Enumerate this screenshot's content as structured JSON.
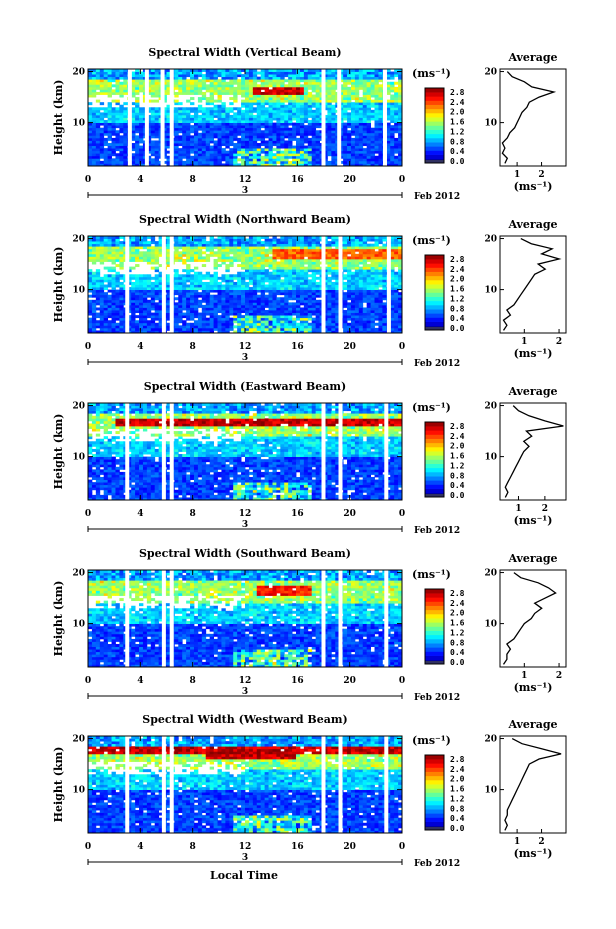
{
  "figure": {
    "xlabel": "Local Time",
    "date_label": "Feb 2012",
    "day_marker": "3",
    "ylabel": "Height (km)",
    "unit_label": "(ms⁻¹)",
    "average_title": "Average",
    "average_xlabel": "(ms⁻¹)"
  },
  "chart_data": [
    {
      "type": "heatmap",
      "title": "Spectral Width (Vertical Beam)",
      "xlabel": "Local Time",
      "ylabel": "Height (km)",
      "xticks": [
        "0",
        "4",
        "8",
        "12",
        "16",
        "20",
        "0"
      ],
      "xlim": [
        0,
        24
      ],
      "yticks": [
        "10",
        "20"
      ],
      "ylim": [
        1.5,
        20.5
      ],
      "colorbar": {
        "label": "(ms⁻¹)",
        "ticks": [
          "2.8",
          "2.4",
          "2.0",
          "1.6",
          "1.2",
          "0.8",
          "0.4",
          "0.0"
        ],
        "range": [
          0,
          2.8
        ]
      },
      "hot_bands": [
        {
          "height_km": 16.3,
          "t_start": 12.7,
          "t_end": 16.5,
          "value": 2.8
        }
      ],
      "data_gaps_hours": [
        3.2,
        4.5,
        5.7,
        6.4,
        18.0,
        19.2,
        22.7
      ],
      "average_profile": {
        "xticks": [
          "1",
          "2"
        ],
        "xlim": [
          0.3,
          3.0
        ],
        "heights": [
          2,
          3,
          4,
          5,
          6,
          7,
          8,
          9,
          10,
          11,
          12,
          13,
          14,
          15,
          16,
          17,
          18,
          19,
          20
        ],
        "values": [
          0.5,
          0.6,
          0.4,
          0.5,
          0.4,
          0.6,
          0.7,
          0.9,
          1.0,
          1.1,
          1.2,
          1.4,
          1.5,
          1.9,
          2.5,
          1.6,
          1.3,
          0.8,
          0.6
        ]
      }
    },
    {
      "type": "heatmap",
      "title": "Spectral Width (Northward Beam)",
      "xlabel": "Local Time",
      "ylabel": "Height (km)",
      "xticks": [
        "0",
        "4",
        "8",
        "12",
        "16",
        "20",
        "0"
      ],
      "xlim": [
        0,
        24
      ],
      "yticks": [
        "10",
        "20"
      ],
      "ylim": [
        1.5,
        20.5
      ],
      "colorbar": {
        "label": "(ms⁻¹)",
        "ticks": [
          "2.8",
          "2.4",
          "2.0",
          "1.6",
          "1.2",
          "0.8",
          "0.4",
          "0.0"
        ],
        "range": [
          0,
          2.8
        ]
      },
      "hot_bands": [
        {
          "height_km": 17.0,
          "t_start": 14.0,
          "t_end": 24.0,
          "value": 2.4
        }
      ],
      "data_gaps_hours": [
        3.0,
        5.8,
        6.4,
        18.0,
        19.3,
        23.0
      ],
      "average_profile": {
        "xticks": [
          "1",
          "2"
        ],
        "xlim": [
          0.3,
          2.2
        ],
        "heights": [
          2,
          3,
          4,
          5,
          6,
          7,
          8,
          9,
          10,
          11,
          12,
          13,
          14,
          15,
          16,
          17,
          18,
          19,
          20
        ],
        "values": [
          0.4,
          0.5,
          0.4,
          0.6,
          0.5,
          0.7,
          0.8,
          0.9,
          1.0,
          1.1,
          1.2,
          1.3,
          1.6,
          1.4,
          2.0,
          1.5,
          1.8,
          1.2,
          0.9
        ]
      }
    },
    {
      "type": "heatmap",
      "title": "Spectral Width (Eastward Beam)",
      "xlabel": "Local Time",
      "ylabel": "Height (km)",
      "xticks": [
        "0",
        "4",
        "8",
        "12",
        "16",
        "20",
        "0"
      ],
      "xlim": [
        0,
        24
      ],
      "yticks": [
        "10",
        "20"
      ],
      "ylim": [
        1.5,
        20.5
      ],
      "colorbar": {
        "label": "(ms⁻¹)",
        "ticks": [
          "2.8",
          "2.4",
          "2.0",
          "1.6",
          "1.2",
          "0.8",
          "0.4",
          "0.0"
        ],
        "range": [
          0,
          2.8
        ]
      },
      "hot_bands": [
        {
          "height_km": 16.8,
          "t_start": 2.0,
          "t_end": 24.0,
          "value": 2.8
        }
      ],
      "data_gaps_hours": [
        3.0,
        5.8,
        6.4,
        18.0,
        19.3,
        22.8
      ],
      "average_profile": {
        "xticks": [
          "1",
          "2"
        ],
        "xlim": [
          0.3,
          2.8
        ],
        "heights": [
          2,
          3,
          4,
          5,
          6,
          7,
          8,
          9,
          10,
          11,
          12,
          13,
          14,
          15,
          16,
          17,
          18,
          19,
          20
        ],
        "values": [
          0.5,
          0.6,
          0.5,
          0.6,
          0.7,
          0.8,
          0.9,
          1.0,
          1.1,
          1.2,
          1.4,
          1.2,
          1.5,
          1.3,
          2.7,
          2.0,
          1.4,
          1.0,
          0.8
        ]
      }
    },
    {
      "type": "heatmap",
      "title": "Spectral Width (Southward Beam)",
      "xlabel": "Local Time",
      "ylabel": "Height (km)",
      "xticks": [
        "0",
        "4",
        "8",
        "12",
        "16",
        "20",
        "0"
      ],
      "xlim": [
        0,
        24
      ],
      "yticks": [
        "10",
        "20"
      ],
      "ylim": [
        1.5,
        20.5
      ],
      "colorbar": {
        "label": "(ms⁻¹)",
        "ticks": [
          "2.8",
          "2.4",
          "2.0",
          "1.6",
          "1.2",
          "0.8",
          "0.4",
          "0.0"
        ],
        "range": [
          0,
          2.8
        ]
      },
      "hot_bands": [
        {
          "height_km": 16.5,
          "t_start": 13.0,
          "t_end": 17.0,
          "value": 2.6
        }
      ],
      "data_gaps_hours": [
        3.0,
        5.8,
        6.4,
        18.0,
        19.3,
        22.8
      ],
      "average_profile": {
        "xticks": [
          "1",
          "2"
        ],
        "xlim": [
          0.3,
          2.2
        ],
        "heights": [
          2,
          3,
          4,
          5,
          6,
          7,
          8,
          9,
          10,
          11,
          12,
          13,
          14,
          15,
          16,
          17,
          18,
          19,
          20
        ],
        "values": [
          0.4,
          0.5,
          0.5,
          0.6,
          0.5,
          0.7,
          0.8,
          0.9,
          1.0,
          1.2,
          1.3,
          1.5,
          1.3,
          1.6,
          1.9,
          1.7,
          1.4,
          0.9,
          0.7
        ]
      }
    },
    {
      "type": "heatmap",
      "title": "Spectral Width (Westward Beam)",
      "xlabel": "Local Time",
      "ylabel": "Height (km)",
      "xticks": [
        "0",
        "4",
        "8",
        "12",
        "16",
        "20",
        "0"
      ],
      "xlim": [
        0,
        24
      ],
      "yticks": [
        "10",
        "20"
      ],
      "ylim": [
        1.5,
        20.5
      ],
      "colorbar": {
        "label": "(ms⁻¹)",
        "ticks": [
          "2.8",
          "2.4",
          "2.0",
          "1.6",
          "1.2",
          "0.8",
          "0.4",
          "0.0"
        ],
        "range": [
          0,
          2.8
        ]
      },
      "hot_bands": [
        {
          "height_km": 17.8,
          "t_start": 0.0,
          "t_end": 24.0,
          "value": 2.8
        },
        {
          "height_km": 16.8,
          "t_start": 9.0,
          "t_end": 16.0,
          "value": 2.8
        }
      ],
      "data_gaps_hours": [
        3.0,
        5.8,
        6.4,
        18.0,
        19.3,
        22.8
      ],
      "average_profile": {
        "xticks": [
          "1",
          "2"
        ],
        "xlim": [
          0.3,
          3.0
        ],
        "heights": [
          2,
          3,
          4,
          5,
          6,
          7,
          8,
          9,
          10,
          11,
          12,
          13,
          14,
          15,
          16,
          17,
          18,
          19,
          20
        ],
        "values": [
          0.5,
          0.6,
          0.5,
          0.6,
          0.6,
          0.7,
          0.8,
          0.9,
          1.0,
          1.1,
          1.2,
          1.3,
          1.4,
          1.5,
          1.9,
          2.8,
          2.0,
          1.2,
          0.8
        ]
      }
    }
  ]
}
